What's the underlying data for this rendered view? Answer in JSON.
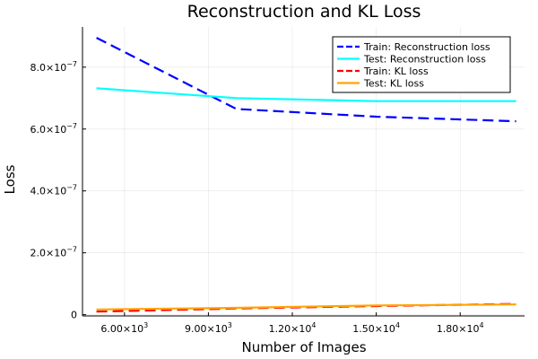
{
  "chart_data": {
    "type": "line",
    "title": "Reconstruction and KL Loss",
    "xlabel": "Number of Images",
    "ylabel": "Loss",
    "xlim": [
      4500,
      20300
    ],
    "ylim": [
      -4e-09,
      9.3e-07
    ],
    "x_ticks": [
      {
        "value": 6000,
        "mantissa": "6.00",
        "exp": "3"
      },
      {
        "value": 9000,
        "mantissa": "9.00",
        "exp": "3"
      },
      {
        "value": 12000,
        "mantissa": "1.20",
        "exp": "4"
      },
      {
        "value": 15000,
        "mantissa": "1.50",
        "exp": "4"
      },
      {
        "value": 18000,
        "mantissa": "1.80",
        "exp": "4"
      }
    ],
    "y_ticks": [
      {
        "value": 0,
        "mantissa": "0",
        "exp": ""
      },
      {
        "value": 2e-07,
        "mantissa": "2.0",
        "exp": "−7"
      },
      {
        "value": 4e-07,
        "mantissa": "4.0",
        "exp": "−7"
      },
      {
        "value": 6e-07,
        "mantissa": "6.0",
        "exp": "−7"
      },
      {
        "value": 8e-07,
        "mantissa": "8.0",
        "exp": "−7"
      }
    ],
    "grid": true,
    "legend_position": "top-right",
    "series": [
      {
        "name": "Train: Reconstruction loss",
        "color": "#0000ff",
        "dash": "dashed",
        "x": [
          5000,
          10000,
          15000,
          20000
        ],
        "y": [
          8.95e-07,
          6.65e-07,
          6.4e-07,
          6.25e-07
        ]
      },
      {
        "name": "Test: Reconstruction loss",
        "color": "#00ffff",
        "dash": "solid",
        "x": [
          5000,
          10000,
          15000,
          20000
        ],
        "y": [
          7.32e-07,
          7e-07,
          6.9e-07,
          6.9e-07
        ]
      },
      {
        "name": "Train: KL loss",
        "color": "#ff0000",
        "dash": "dashed",
        "x": [
          5000,
          10000,
          15000,
          20000
        ],
        "y": [
          1e-08,
          2e-08,
          2.8e-08,
          3.5e-08
        ]
      },
      {
        "name": "Test: KL loss",
        "color": "#ffa500",
        "dash": "solid",
        "x": [
          5000,
          10000,
          15000,
          20000
        ],
        "y": [
          1.7e-08,
          2.2e-08,
          3e-08,
          3.3e-08
        ]
      }
    ]
  }
}
